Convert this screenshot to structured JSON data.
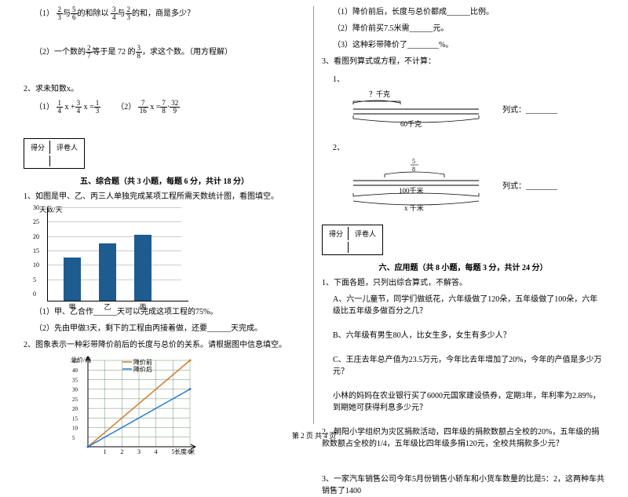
{
  "left": {
    "q1_1": {
      "label": "（1）",
      "t1": "的和除以",
      "t2": "与",
      "t3": "的和，商是多少？",
      "f1n": "2",
      "f1d": "3",
      "f2n": "5",
      "f2d": "6",
      "f3n": "3",
      "f3d": "4",
      "f4n": "2",
      "f4d": "3"
    },
    "q1_2": {
      "label": "（2）一个数的",
      "t1": "等于是 72 的",
      "t2": "，求这个数。（用方程解）",
      "f1n": "2",
      "f1d": "7",
      "f2n": "3",
      "f2d": "8"
    },
    "q2_head": "2、求未知数x。",
    "q2_1": {
      "label": "（1）",
      "f1n": "1",
      "f1d": "4",
      "mid": " x +",
      "f2n": "3",
      "f2d": "4",
      "eq": " x =",
      "f3n": "1",
      "f3d": "3"
    },
    "q2_2": {
      "label": "（2）",
      "f1n": "7",
      "f1d": "16",
      "mid": " x =",
      "f2n": "7",
      "f2d": "8",
      "dot": "·",
      "f3n": "32",
      "f3d": "9"
    },
    "score": {
      "c1": "得分",
      "c2": "评卷人"
    },
    "section5": "五、综合题（共 3 小题，每题 6 分，共计 18 分）",
    "s5_q1": "1、如图是甲、乙、丙三人单独完成某项工程所需天数统计图，看图填空。",
    "barChart": {
      "ylabel": "天数/天",
      "yticks": [
        0,
        5,
        10,
        15,
        20,
        25,
        30
      ],
      "ymax": 30,
      "bars": [
        {
          "label": "甲",
          "value": 15
        },
        {
          "label": "乙",
          "value": 20
        },
        {
          "label": "丙",
          "value": 23
        }
      ],
      "bar_color": "#1e5b8f",
      "axis_color": "#000000"
    },
    "s5_q1a": "（1）甲、乙合作______天可以完成这项工程的75%。",
    "s5_q1b": "（2）先由甲做3天，剩下的工程由丙接着做，还要______天完成。",
    "s5_q2": "2、图象表示一种彩带降价前后的长度与总价的关系。请根据图中信息填空。",
    "lineChart": {
      "ylabel": "总价/元",
      "xlabel": "长度/米",
      "xticks": [
        1,
        2,
        3,
        4,
        5,
        6
      ],
      "yticks": [
        5,
        10,
        15,
        20,
        25,
        30,
        35,
        40,
        45
      ],
      "ymax": 45,
      "legend": [
        {
          "label": "降价前",
          "color": "#d17b2e"
        },
        {
          "label": "降价后",
          "color": "#2e7bd1"
        }
      ],
      "series": [
        {
          "color": "#d17b2e",
          "points": [
            [
              0,
              0
            ],
            [
              6,
              45
            ]
          ]
        },
        {
          "color": "#2e7bd1",
          "points": [
            [
              0,
              0
            ],
            [
              6,
              30
            ]
          ]
        }
      ],
      "grid_color": "#4a7a4a"
    }
  },
  "right": {
    "r1a": "（1）降价前后，长度与总价都成______比例。",
    "r1b": "（2）降价前买7.5米需______元。",
    "r1c": "（3）这种彩带降价了________%。",
    "s5_q3": "3、看图列算式或方程，不计算：",
    "dia1": {
      "top": "？千克",
      "bottom": "60千克",
      "side": "列式：________"
    },
    "dia2_label": "2、",
    "dia2": {
      "fn": "5",
      "fd": "8",
      "mid": "100千米",
      "bottom": "x 千米",
      "side": "列式：________"
    },
    "section6": "六、应用题（共 8 小题，每题 3 分，共计 24 分）",
    "a_q1": "1、下面各题，只列出综合算式，不解答。",
    "a_q1a": "A、六一儿童节，同学们做纸花，六年级做了120朵，五年级做了100朵，六年级比五年级多做百分之几？",
    "a_q1b": "B、六年级有男生80人，比女生多，女生有多少人？",
    "a_q1c": "C、王庄去年总产值为23.5万元，今年比去年增加了20%，今年的产值是多少万元？",
    "a_q1d": "    小林的妈妈在农业银行买了6000元国家建设债券，定期3年，年利率为2.89%，到期她可获得利息多少元？",
    "a_q2": "2、朝阳小学组织为灾区捐款活动，四年级的捐款数额占全校的20%，五年级的捐款数额占全校的1/4，五年级比四年级多捐120元，全校共捐款多少元？",
    "a_q3": "3、一家汽车销售公司今年5月份销售小轿车和小货车数量的比是5：2，这两种车共销售了1400"
  },
  "footer": "第 2 页 共 4 页"
}
